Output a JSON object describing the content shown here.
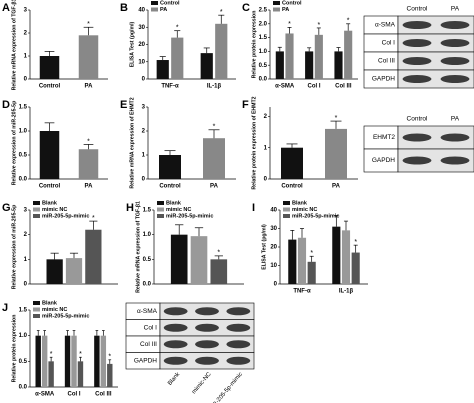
{
  "chart_data": [
    {
      "type": "bar",
      "letter": "A",
      "ylabel": "Relative mRNA expression of TGF-β1",
      "categories": [
        "Control",
        "PA"
      ],
      "values": [
        1.0,
        1.9
      ],
      "errors": [
        0.2,
        0.35
      ],
      "colors": [
        "#111111",
        "#888888"
      ],
      "significant": [
        false,
        true
      ],
      "star": "*",
      "ylim": [
        0,
        3
      ],
      "yticks": [
        0,
        1,
        2,
        3
      ]
    },
    {
      "type": "grouped_bar",
      "letter": "B",
      "ylabel": "ELISA Test (pg/ml)",
      "categories": [
        "TNF-α",
        "IL-1β"
      ],
      "star": "*",
      "ylim": [
        0,
        40
      ],
      "yticks": [
        0,
        10,
        20,
        30,
        40
      ],
      "series": [
        {
          "name": "Control",
          "color": "#111111",
          "values": [
            11,
            15
          ],
          "errors": [
            2,
            3
          ],
          "significant": [
            false,
            false
          ]
        },
        {
          "name": "PA",
          "color": "#888888",
          "values": [
            24,
            32
          ],
          "errors": [
            4,
            5
          ],
          "significant": [
            true,
            true
          ]
        }
      ]
    },
    {
      "type": "grouped_bar",
      "letter": "C",
      "ylabel": "Relative protein expression",
      "categories": [
        "α-SMA",
        "Col I",
        "Col III"
      ],
      "star": "*",
      "ylim": [
        0,
        2.5
      ],
      "yticks": [
        {
          "value": 0,
          "label": "0.0"
        },
        {
          "value": 0.5,
          "label": "0.5"
        },
        {
          "value": 1,
          "label": "1.0"
        },
        {
          "value": 1.5,
          "label": "1.5"
        },
        {
          "value": 2,
          "label": "2.0"
        },
        {
          "value": 2.5,
          "label": "2.5"
        }
      ],
      "series": [
        {
          "name": "Control",
          "color": "#111111",
          "values": [
            1.0,
            1.0,
            1.0
          ],
          "errors": [
            0.15,
            0.13,
            0.14
          ],
          "significant": [
            false,
            false,
            false
          ]
        },
        {
          "name": "PA",
          "color": "#888888",
          "values": [
            1.65,
            1.6,
            1.75
          ],
          "errors": [
            0.22,
            0.25,
            0.25
          ],
          "significant": [
            true,
            true,
            true
          ]
        }
      ]
    },
    {
      "type": "bar",
      "letter": "D",
      "ylabel": "Relative expression of miR-205-5p",
      "categories": [
        "Control",
        "PA"
      ],
      "values": [
        1.0,
        0.62
      ],
      "errors": [
        0.17,
        0.1
      ],
      "colors": [
        "#111111",
        "#888888"
      ],
      "significant": [
        false,
        true
      ],
      "star": "*",
      "ylim": [
        0,
        1.5
      ],
      "yticks": [
        {
          "value": 0,
          "label": "0.0"
        },
        {
          "value": 0.5,
          "label": "0.5"
        },
        {
          "value": 1,
          "label": "1.0"
        },
        {
          "value": 1.5,
          "label": "1.5"
        }
      ]
    },
    {
      "type": "bar",
      "letter": "E",
      "ylabel": "Relative mRNA expression of EHMT2",
      "categories": [
        "Control",
        "PA"
      ],
      "values": [
        1.0,
        1.7
      ],
      "errors": [
        0.18,
        0.35
      ],
      "colors": [
        "#111111",
        "#888888"
      ],
      "significant": [
        false,
        true
      ],
      "star": "*",
      "ylim": [
        0,
        3
      ],
      "yticks": [
        0,
        1,
        2,
        3
      ]
    },
    {
      "type": "bar",
      "letter": "F",
      "ylabel": "Relative protein expression of EHMT2",
      "categories": [
        "Control",
        "PA"
      ],
      "values": [
        1.0,
        1.6
      ],
      "errors": [
        0.12,
        0.25
      ],
      "colors": [
        "#111111",
        "#888888"
      ],
      "significant": [
        false,
        true
      ],
      "star": "*",
      "ylim": [
        0,
        2.3
      ],
      "yticks": [
        0,
        1,
        2
      ]
    },
    {
      "type": "grouped_bar",
      "letter": "G",
      "ylabel": "Relative expression of miR-205-5p",
      "categories": [
        null
      ],
      "star": "*",
      "ylim": [
        0,
        3
      ],
      "yticks": [
        0,
        1,
        2,
        3
      ],
      "series": [
        {
          "name": "Blank",
          "color": "#111111",
          "values": [
            1.0
          ],
          "errors": [
            0.25
          ],
          "significant": [
            false
          ]
        },
        {
          "name": "mimic NC",
          "color": "#999999",
          "values": [
            1.05
          ],
          "errors": [
            0.2
          ],
          "significant": [
            false
          ]
        },
        {
          "name": "miR-205-5p-mimic",
          "color": "#555555",
          "values": [
            2.2
          ],
          "errors": [
            0.35
          ],
          "significant": [
            true
          ]
        }
      ]
    },
    {
      "type": "grouped_bar",
      "letter": "H",
      "ylabel": "Relative mRNA expression of TGF-β1",
      "categories": [
        null
      ],
      "star": "*",
      "ylim": [
        0,
        1.5
      ],
      "yticks": [
        {
          "value": 0,
          "label": "0.0"
        },
        {
          "value": 0.5,
          "label": "0.5"
        },
        {
          "value": 1,
          "label": "1.0"
        },
        {
          "value": 1.5,
          "label": "1.5"
        }
      ],
      "series": [
        {
          "name": "Blank",
          "color": "#111111",
          "values": [
            1.0
          ],
          "errors": [
            0.2
          ],
          "significant": [
            false
          ]
        },
        {
          "name": "mimic NC",
          "color": "#999999",
          "values": [
            0.97
          ],
          "errors": [
            0.17
          ],
          "significant": [
            false
          ]
        },
        {
          "name": "miR-205-5p-mimic",
          "color": "#555555",
          "values": [
            0.5
          ],
          "errors": [
            0.07
          ],
          "significant": [
            true
          ]
        }
      ]
    },
    {
      "type": "grouped_bar",
      "letter": "I",
      "ylabel": "ELISA Test (pg/ml)",
      "categories": [
        "TNF-α",
        "IL-1β"
      ],
      "star": "*",
      "ylim": [
        0,
        40
      ],
      "yticks": [
        0,
        10,
        20,
        30,
        40
      ],
      "series": [
        {
          "name": "Blank",
          "color": "#111111",
          "values": [
            24,
            31
          ],
          "errors": [
            5,
            6
          ],
          "significant": [
            false,
            false
          ]
        },
        {
          "name": "mimic NC",
          "color": "#999999",
          "values": [
            25,
            29
          ],
          "errors": [
            5,
            5
          ],
          "significant": [
            false,
            false
          ]
        },
        {
          "name": "miR-205-5p-mimic",
          "color": "#555555",
          "values": [
            12,
            17
          ],
          "errors": [
            3,
            4
          ],
          "significant": [
            true,
            true
          ]
        }
      ]
    },
    {
      "type": "grouped_bar",
      "letter": "J",
      "ylabel": "Relative protein expression",
      "categories": [
        "α-SMA",
        "Col I",
        "Col III"
      ],
      "star": "*",
      "ylim": [
        0,
        1.5
      ],
      "yticks": [
        {
          "value": 0,
          "label": "0.0"
        },
        {
          "value": 0.5,
          "label": "0.5"
        },
        {
          "value": 1,
          "label": "1.0"
        },
        {
          "value": 1.5,
          "label": "1.5"
        }
      ],
      "series": [
        {
          "name": "Blank",
          "color": "#111111",
          "values": [
            1.0,
            1.0,
            1.0
          ],
          "errors": [
            0.1,
            0.1,
            0.1
          ],
          "significant": [
            false,
            false,
            false
          ]
        },
        {
          "name": "mimic NC",
          "color": "#999999",
          "values": [
            1.0,
            1.0,
            1.0
          ],
          "errors": [
            0.1,
            0.1,
            0.1
          ],
          "significant": [
            false,
            false,
            false
          ]
        },
        {
          "name": "miR-205-5p-mimic",
          "color": "#555555",
          "values": [
            0.5,
            0.5,
            0.45
          ],
          "errors": [
            0.08,
            0.08,
            0.08
          ],
          "significant": [
            true,
            true,
            true
          ]
        }
      ]
    }
  ],
  "blots": [
    {
      "rows": [
        "α-SMA",
        "Col I",
        "Col III",
        "GAPDH"
      ],
      "columns": [
        "Control",
        "PA"
      ]
    },
    {
      "rows": [
        "EHMT2",
        "GAPDH"
      ],
      "columns": [
        "Control",
        "PA"
      ]
    },
    {
      "rows": [
        "α-SMA",
        "Col I",
        "Col III",
        "GAPDH"
      ],
      "columns": [
        "Blank",
        "mimic-NC",
        "miR-205-5p-mimic"
      ]
    }
  ]
}
